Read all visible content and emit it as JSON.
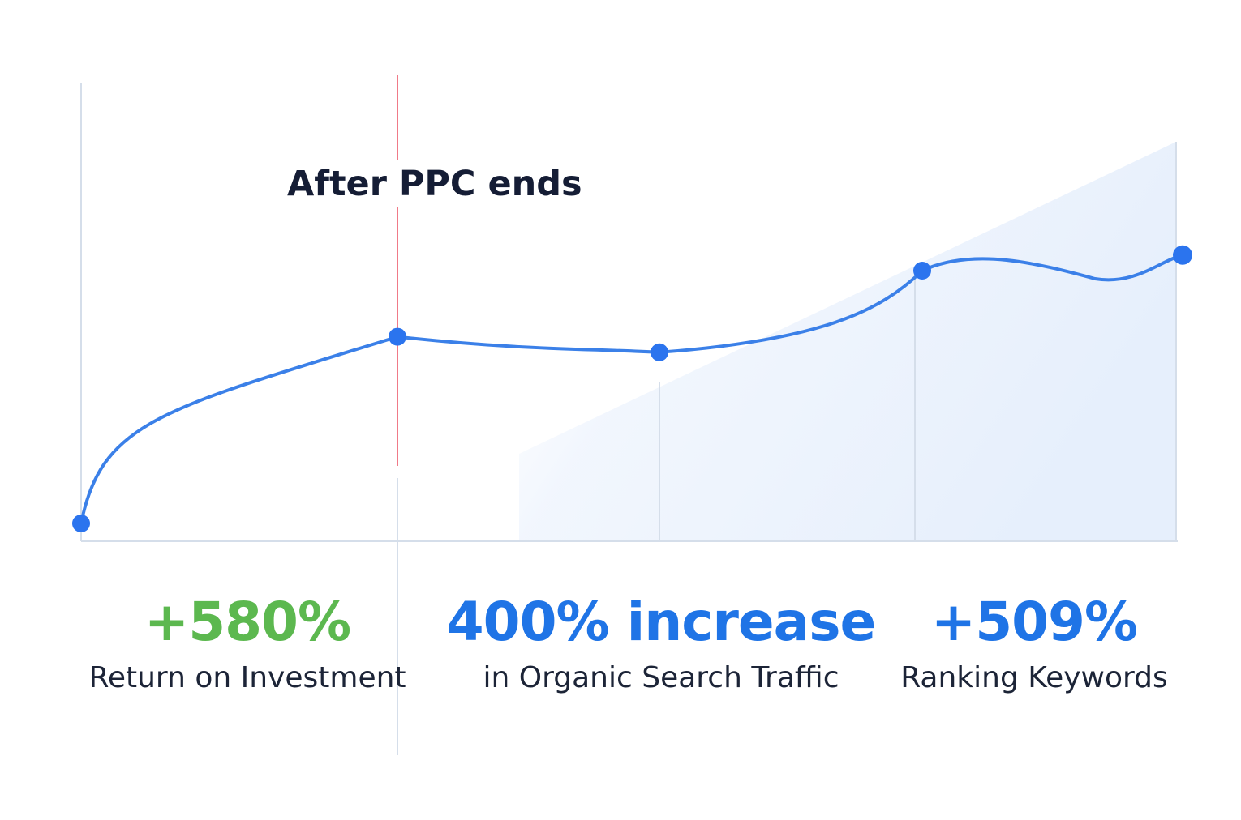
{
  "chart_data": {
    "type": "line",
    "x": [
      0,
      1,
      2,
      3,
      4
    ],
    "values": [
      0,
      48,
      44,
      65,
      69
    ],
    "ylim": [
      0,
      100
    ],
    "grid": true,
    "annotation": {
      "text": "After PPC ends",
      "at_x": 1
    },
    "colors": {
      "line": "#3b80e8",
      "point": "#2b74ee",
      "area": "#e9f1fc",
      "grid": "#d5deea",
      "marker": "#f07a88"
    }
  },
  "stats": [
    {
      "value": "+580%",
      "label": "Return on Investment",
      "color": "#5cb84f"
    },
    {
      "value": "400% increase",
      "label": "in Organic Search Traffic",
      "color": "#1f74e6"
    },
    {
      "value": "+509%",
      "label": "Ranking Keywords",
      "color": "#1f74e6"
    }
  ]
}
